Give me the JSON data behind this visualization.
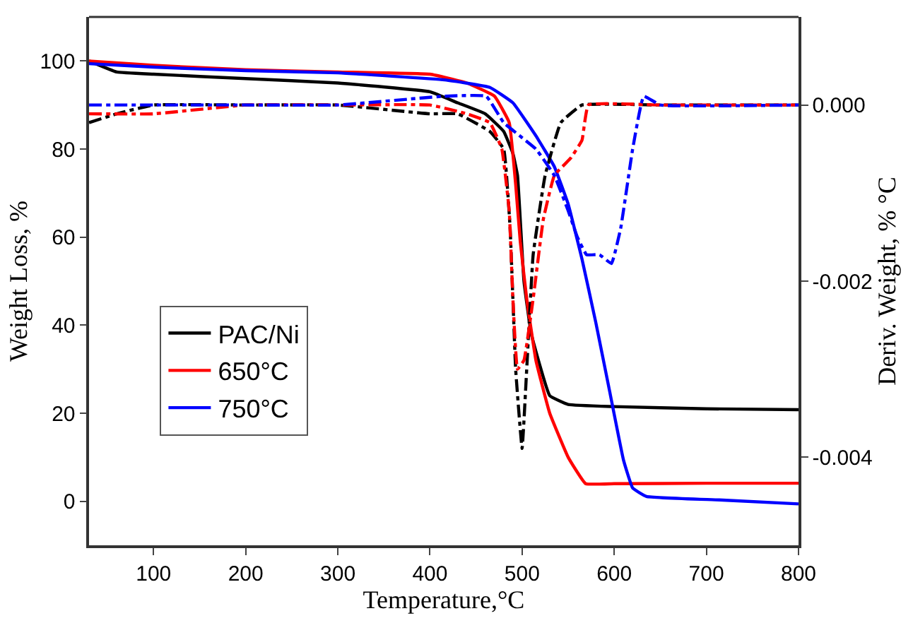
{
  "chart_data": {
    "type": "line",
    "xlabel": "Temperature,°C",
    "ylabel": "Weight Loss, %",
    "y2label": "Deriv. Weight, % °C",
    "xlim": [
      30,
      800
    ],
    "xticks": [
      100,
      200,
      300,
      400,
      500,
      600,
      700,
      800
    ],
    "ylim": [
      -10,
      110
    ],
    "yticks": [
      0,
      20,
      40,
      60,
      80,
      100
    ],
    "y2lim": [
      -0.005,
      0.001
    ],
    "y2ticks": [
      {
        "value": 0,
        "label": "0.000"
      },
      {
        "value": -0.002,
        "label": "-0.002"
      },
      {
        "value": -0.004,
        "label": "-0.004"
      }
    ],
    "legend": "left",
    "marker": "none",
    "series": [
      {
        "name": "PAC/Ni",
        "color": "#000000",
        "line_style": "solid",
        "x": [
          30,
          60,
          100,
          200,
          300,
          400,
          430,
          460,
          480,
          490,
          495,
          502,
          510,
          530,
          550,
          600,
          700,
          800
        ],
        "values": [
          100,
          97.5,
          97,
          96,
          95,
          93,
          90.5,
          88,
          84,
          79,
          74,
          50,
          38,
          24,
          22,
          21.5,
          21,
          20.8
        ]
      },
      {
        "name": "650°C",
        "color": "#ff0000",
        "line_style": "solid",
        "x": [
          30,
          100,
          200,
          300,
          400,
          440,
          470,
          486,
          493,
          498,
          505,
          515,
          530,
          550,
          569,
          600,
          700,
          800
        ],
        "values": [
          100,
          99,
          98,
          97.5,
          97,
          95,
          92,
          86,
          72,
          59,
          46,
          32,
          20,
          10,
          4,
          4,
          4.1,
          4.1
        ]
      },
      {
        "name": "750°C",
        "color": "#0000ff",
        "line_style": "solid",
        "x": [
          30,
          100,
          200,
          300,
          416,
          465,
          490,
          515,
          535,
          550,
          565,
          580,
          595,
          610,
          620,
          635,
          714,
          800
        ],
        "values": [
          99.4,
          98.6,
          97.8,
          97.3,
          95.7,
          94,
          90.5,
          83,
          76,
          67.5,
          55,
          40.6,
          25,
          9.4,
          3,
          1.1,
          0.3,
          -0.6
        ]
      },
      {
        "color": "#000000",
        "line_style": "dashed",
        "axis": "y2",
        "x": [
          30,
          60,
          100,
          200,
          300,
          400,
          430,
          465,
          480,
          487,
          493,
          500,
          505,
          512,
          525,
          542,
          565,
          650,
          800
        ],
        "values": [
          -0.0002,
          -0.0001,
          0,
          0,
          0,
          -0.0001,
          -0.0001,
          -0.0003,
          -0.0005,
          -0.0014,
          -0.003,
          -0.0039,
          -0.003,
          -0.0017,
          -0.0008,
          -0.0002,
          0,
          0,
          0
        ]
      },
      {
        "color": "#ff0000",
        "line_style": "dashed",
        "axis": "y2",
        "x": [
          30,
          100,
          200,
          300,
          400,
          440,
          465,
          478,
          486,
          490,
          495,
          502,
          512,
          523,
          535,
          553,
          565,
          572,
          650,
          800
        ],
        "values": [
          -0.0001,
          -0.0001,
          0,
          0,
          0,
          -0.0001,
          -0.0002,
          -0.0005,
          -0.0012,
          -0.0022,
          -0.003,
          -0.0029,
          -0.0022,
          -0.0013,
          -0.0008,
          -0.0006,
          -0.0004,
          0,
          0,
          0
        ]
      },
      {
        "color": "#0000ff",
        "line_style": "dashed",
        "axis": "y2",
        "x": [
          30,
          100,
          200,
          300,
          416,
          461,
          480,
          515,
          535,
          550,
          560,
          570,
          584,
          597,
          607,
          620,
          632,
          650,
          800
        ],
        "values": [
          0,
          0,
          0,
          0,
          0.0001,
          0.0001,
          -0.0002,
          -0.0005,
          -0.0008,
          -0.0012,
          -0.0015,
          -0.0017,
          -0.0017,
          -0.0018,
          -0.0014,
          -0.0005,
          0.0001,
          0,
          0
        ]
      }
    ]
  }
}
